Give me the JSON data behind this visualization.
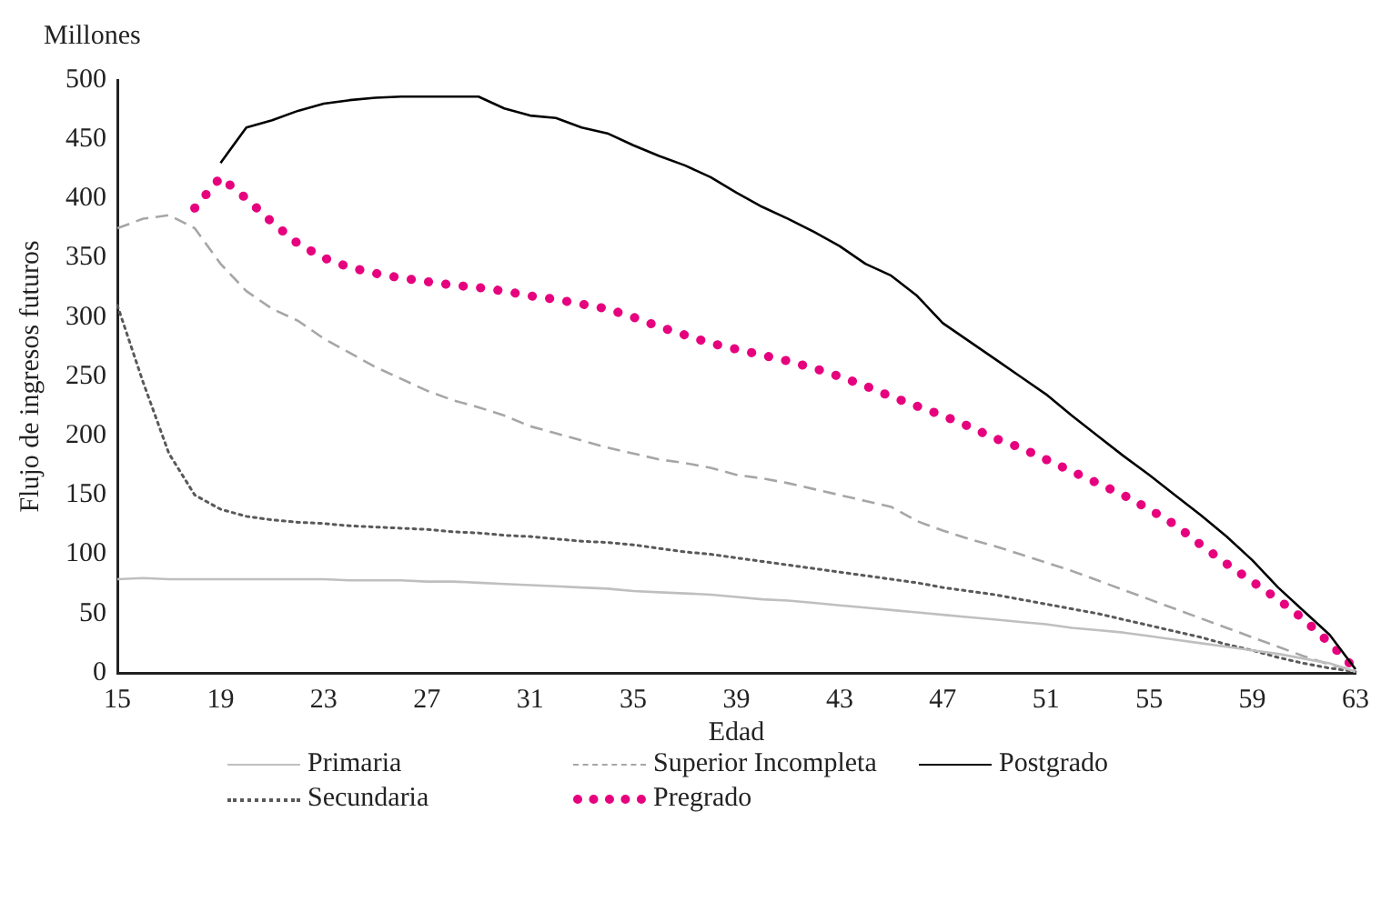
{
  "chart_data": {
    "type": "line",
    "xlabel": "Edad",
    "ylabel": "Flujo de ingresos futuros",
    "annotations": [
      "Millones"
    ],
    "categories": [
      "15",
      null,
      null,
      null,
      "19",
      null,
      null,
      null,
      "23",
      null,
      null,
      null,
      "27",
      null,
      null,
      null,
      "31",
      null,
      null,
      null,
      "35",
      null,
      null,
      null,
      "39",
      null,
      null,
      null,
      "43",
      null,
      null,
      null,
      "47",
      null,
      null,
      null,
      "51",
      null,
      null,
      null,
      "55",
      null,
      null,
      null,
      "59",
      null,
      null,
      null,
      "63"
    ],
    "series": [
      {
        "name": "Primaria",
        "color": "#bfbfbf",
        "line_style": "solid",
        "values": [
          79,
          80,
          79,
          79,
          79,
          79,
          79,
          79,
          79,
          78,
          78,
          78,
          77,
          77,
          76,
          75,
          74,
          73,
          72,
          71,
          69,
          68,
          67,
          66,
          64,
          62,
          61,
          59,
          57,
          55,
          53,
          51,
          49,
          47,
          45,
          43,
          41,
          38,
          36,
          34,
          31,
          28,
          25,
          22,
          19,
          16,
          12,
          8,
          1
        ]
      },
      {
        "name": "Superior Incompleta",
        "color": "#a6a6a6",
        "line_style": "dashed",
        "values": [
          375,
          383,
          386,
          375,
          345,
          322,
          307,
          297,
          282,
          270,
          258,
          248,
          238,
          230,
          224,
          217,
          208,
          202,
          196,
          190,
          185,
          180,
          177,
          173,
          167,
          164,
          160,
          155,
          150,
          145,
          140,
          128,
          120,
          113,
          107,
          100,
          93,
          86,
          78,
          70,
          62,
          54,
          46,
          38,
          30,
          22,
          14,
          7,
          2
        ]
      },
      {
        "name": "Postgrado",
        "color": "#000000",
        "line_style": "solid",
        "values": [
          null,
          null,
          null,
          null,
          430,
          460,
          466,
          474,
          480,
          483,
          485,
          486,
          486,
          486,
          486,
          476,
          470,
          468,
          460,
          455,
          445,
          436,
          428,
          418,
          405,
          393,
          383,
          372,
          360,
          345,
          335,
          318,
          295,
          280,
          265,
          250,
          235,
          217,
          200,
          183,
          167,
          150,
          133,
          115,
          95,
          72,
          52,
          32,
          3
        ]
      },
      {
        "name": "Secundaria",
        "color": "#595959",
        "line_style": "dotted",
        "values": [
          310,
          245,
          185,
          150,
          138,
          132,
          129,
          127,
          126,
          124,
          123,
          122,
          121,
          119,
          118,
          116,
          115,
          113,
          111,
          110,
          108,
          105,
          102,
          100,
          97,
          94,
          91,
          88,
          85,
          82,
          79,
          76,
          72,
          69,
          66,
          62,
          58,
          54,
          50,
          45,
          40,
          35,
          30,
          24,
          19,
          13,
          8,
          4,
          1
        ]
      },
      {
        "name": "Pregrado",
        "color": "#e6007e",
        "line_style": "dotted",
        "values": [
          null,
          null,
          null,
          392,
          418,
          400,
          380,
          362,
          350,
          342,
          337,
          333,
          330,
          327,
          325,
          322,
          318,
          315,
          311,
          307,
          300,
          292,
          285,
          278,
          273,
          268,
          263,
          257,
          250,
          242,
          233,
          225,
          217,
          208,
          198,
          190,
          180,
          170,
          160,
          150,
          138,
          125,
          108,
          92,
          77,
          62,
          45,
          25,
          3
        ]
      }
    ],
    "ylim": [
      0,
      500
    ],
    "yticks": [
      0,
      50,
      100,
      150,
      200,
      250,
      300,
      350,
      400,
      450,
      500
    ],
    "grid": false,
    "legend": "bottom",
    "marker": "none"
  }
}
